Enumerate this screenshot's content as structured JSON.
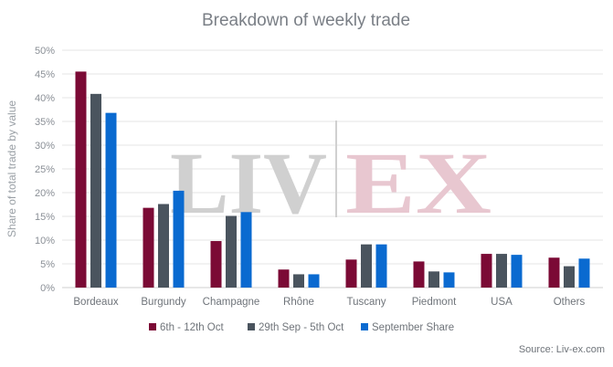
{
  "chart_data": {
    "type": "bar",
    "title": "Breakdown of weekly trade",
    "ylabel": "Share of total trade by value",
    "xlabel": "",
    "ylim": [
      0,
      50
    ],
    "yticks": [
      0,
      5,
      10,
      15,
      20,
      25,
      30,
      35,
      40,
      45,
      50
    ],
    "ytick_labels": [
      "0%",
      "5%",
      "10%",
      "15%",
      "20%",
      "25%",
      "30%",
      "35%",
      "40%",
      "45%",
      "50%"
    ],
    "grid": true,
    "legend": "bottom",
    "categories": [
      "Bordeaux",
      "Burgundy",
      "Champagne",
      "Rhône",
      "Tuscany",
      "Piedmont",
      "USA",
      "Others"
    ],
    "series": [
      {
        "name": "6th - 12th Oct",
        "color": "#7b0a35",
        "values": [
          45.5,
          16.8,
          9.8,
          3.8,
          5.9,
          5.5,
          7.1,
          6.3
        ]
      },
      {
        "name": "29th Sep - 5th Oct",
        "color": "#4a545e",
        "values": [
          40.8,
          17.6,
          15.1,
          2.8,
          9.1,
          3.4,
          7.1,
          4.5
        ]
      },
      {
        "name": "September Share",
        "color": "#0a6ad0",
        "values": [
          36.8,
          20.4,
          15.9,
          2.8,
          9.1,
          3.2,
          6.9,
          6.1
        ]
      }
    ]
  },
  "watermark": {
    "left": "LIV",
    "right": "EX",
    "left_color": "#d0d0d0",
    "right_color": "#e8c7d0"
  },
  "source": "Source: Liv-ex.com"
}
